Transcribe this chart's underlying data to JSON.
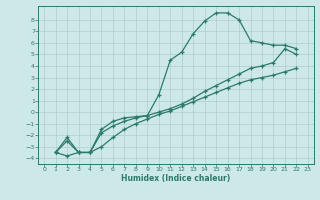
{
  "xlabel": "Humidex (Indice chaleur)",
  "bg_color": "#cde8e8",
  "grid_color": "#b0cccc",
  "line_color": "#2d7a6a",
  "xlim": [
    -0.5,
    23.5
  ],
  "ylim": [
    -4.5,
    9.2
  ],
  "xticks": [
    0,
    1,
    2,
    3,
    4,
    5,
    6,
    7,
    8,
    9,
    10,
    11,
    12,
    13,
    14,
    15,
    16,
    17,
    18,
    19,
    20,
    21,
    22,
    23
  ],
  "yticks": [
    -4,
    -3,
    -2,
    -1,
    0,
    1,
    2,
    3,
    4,
    5,
    6,
    7,
    8
  ],
  "line1_x": [
    1,
    2,
    3,
    4,
    5,
    6,
    7,
    8,
    9,
    10,
    11,
    12,
    13,
    14,
    15,
    16,
    17,
    18,
    19,
    20,
    21,
    22
  ],
  "line1_y": [
    -3.5,
    -3.8,
    -3.5,
    -3.5,
    -3.0,
    -2.2,
    -1.5,
    -1.0,
    -0.6,
    -0.2,
    0.1,
    0.5,
    0.9,
    1.3,
    1.7,
    2.1,
    2.5,
    2.8,
    3.0,
    3.2,
    3.5,
    3.8
  ],
  "line2_x": [
    1,
    2,
    3,
    4,
    5,
    6,
    7,
    8,
    9,
    10,
    11,
    12,
    13,
    14,
    15,
    16,
    17,
    18,
    19,
    20,
    21,
    22
  ],
  "line2_y": [
    -3.5,
    -2.2,
    -3.5,
    -3.5,
    -1.5,
    -0.8,
    -0.5,
    -0.4,
    -0.3,
    1.5,
    4.5,
    5.2,
    6.8,
    7.9,
    8.6,
    8.6,
    8.0,
    6.2,
    6.0,
    5.8,
    5.8,
    5.5
  ],
  "line3_x": [
    1,
    2,
    3,
    4,
    5,
    6,
    7,
    8,
    9,
    10,
    11,
    12,
    13,
    14,
    15,
    16,
    17,
    18,
    19,
    20,
    21,
    22
  ],
  "line3_y": [
    -3.5,
    -2.5,
    -3.5,
    -3.5,
    -1.8,
    -1.2,
    -0.8,
    -0.5,
    -0.3,
    0.0,
    0.3,
    0.7,
    1.2,
    1.8,
    2.3,
    2.8,
    3.3,
    3.8,
    4.0,
    4.3,
    5.5,
    5.0
  ]
}
